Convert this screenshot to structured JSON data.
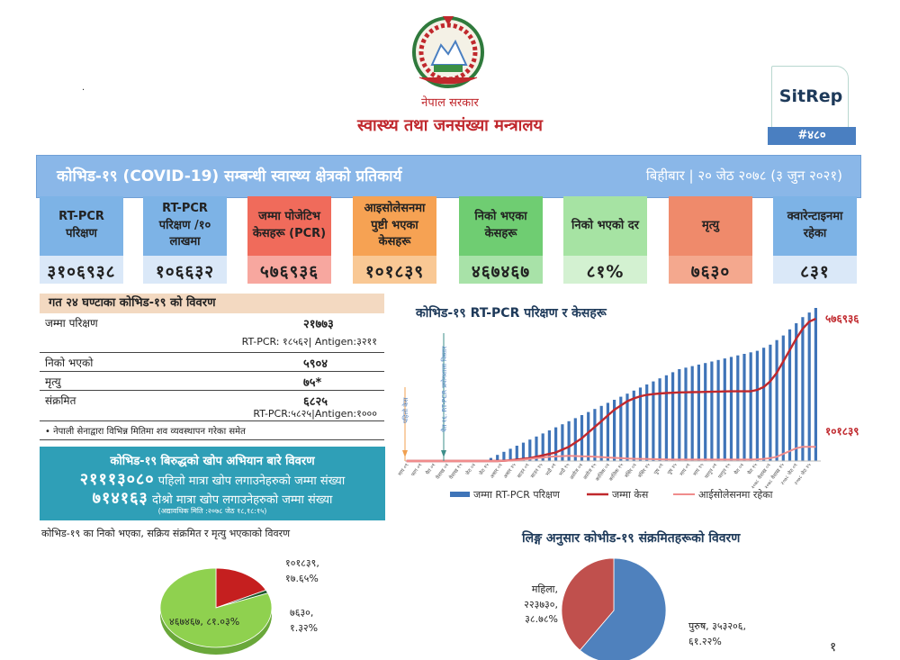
{
  "header": {
    "gov_name": "नेपाल सरकार",
    "ministry": "स्वास्थ्य तथा जनसंख्या मन्त्रालय",
    "dot": ".",
    "emblem_icon": "nepal-emblem"
  },
  "sitrep": {
    "label": "SitRep",
    "number": "#४८०"
  },
  "banner": {
    "title": "कोभिड-१९ (COVID-19) सम्बन्धी स्वास्थ्य क्षेत्रको प्रतिकार्य",
    "date": "बिहीबार | २० जेठ २०७८ (३ जुन २०२१)"
  },
  "cards": [
    {
      "label": "RT-PCR परिक्षण",
      "value": "३१०६९३८",
      "color_top": "#7db3e6",
      "color_bottom": "#dae8f8"
    },
    {
      "label": "RT-PCR परिक्षण /१० लाखमा",
      "value": "१०६६३२",
      "color_top": "#7db3e6",
      "color_bottom": "#dae8f8"
    },
    {
      "label": "जम्मा पोजेटिभ केसहरू (PCR)",
      "value": "५७६९३६",
      "color_top": "#f06b5b",
      "color_bottom": "#f7a79f"
    },
    {
      "label": "आइसोलेसनमा पुष्टी भएका केसहरू",
      "value": "१०१८३९",
      "color_top": "#f6a253",
      "color_bottom": "#f9c894"
    },
    {
      "label": "निको भएका केसहरू",
      "value": "४६७४६७",
      "color_top": "#6fcd72",
      "color_bottom": "#a8e2a8"
    },
    {
      "label": "निको भएको दर",
      "value": "८१%",
      "color_top": "#a6e3a3",
      "color_bottom": "#d3f1d1"
    },
    {
      "label": "मृत्यु",
      "value": "७६३०",
      "color_top": "#ef8a6b",
      "color_bottom": "#f4a88e"
    },
    {
      "label": "क्वारेन्टाइनमा रहेका",
      "value": "८३१",
      "color_top": "#7db3e6",
      "color_bottom": "#dae8f8"
    }
  ],
  "table24": {
    "title": "गत २४ घण्टाका कोभिड-१९ को विवरण",
    "rows": [
      {
        "label": "जम्मा परिक्षण",
        "value": "२१७७३",
        "sub": "RT-PCR: १८५६२| Antigen:३२११"
      },
      {
        "label": "निको भएको",
        "value": "५९०४",
        "sub": ""
      },
      {
        "label": "मृत्यु",
        "value": "७५*",
        "sub": ""
      },
      {
        "label": "संक्रमित",
        "value": "६८२५",
        "sub": "RT-PCR:५८२५|Antigen:१०००"
      }
    ],
    "note": "• नेपाली सेनाद्वारा विभिन्न मितिमा शव व्यवस्थापन गरेका समेत"
  },
  "vaccine": {
    "title": "कोभिड-१९ बिरुद्धको खोप अभियान बारे विवरण",
    "first_value": "२१११३०८०",
    "first_text": "पहिलो मात्रा खोप लगाउनेहरुको जम्मा संख्या",
    "second_value": "७१४१६३",
    "second_text": "दोश्रो मात्रा खोप लगाउनेहरुको जम्मा संख्या",
    "note": "(अद्यावधिक मिति :२०७८ जेठ १८,१८:१५)"
  },
  "left_pie": {
    "title": "कोभिड-१९ का निको भएका, सक्रिय संक्रमित र मृत्यु भएकाको विवरण",
    "labels": [
      {
        "line1": "१०१८३९,",
        "line2": "१७.६५%"
      },
      {
        "line1": "७६३०,",
        "line2": "१.३२%"
      },
      {
        "line1": "४६७४६७, ८१.०३%",
        "line2": ""
      }
    ]
  },
  "right_pie": {
    "title": "लिङ्ग अनुसार कोभीड-१९ संक्रमितहरूको विवरण",
    "female": {
      "line1": "महिला,",
      "line2": "२२३७३०,",
      "line3": "३८.७८%"
    },
    "male": {
      "line1": "पुरुष, ३५३२०६,",
      "line2": "६१.२२%"
    }
  },
  "page_number": "१",
  "main_chart": {
    "title_prefix": "कोभिड-१९",
    "title_rest": "RT-PCR परिक्षण र केसहरू",
    "end_label_cases": "५७६९३६",
    "end_label_isolation": "१०१८३९",
    "annotations": [
      "पहिलो केस",
      "चैत १६: RT-PCR प्रयोगशाला विस्तार"
    ],
    "x_tick_labels": [
      "माघ ०९",
      "फाग ०१",
      "चैत ०१",
      "वैशाख ०१",
      "वैशाख १५",
      "जेठ ०१",
      "जेठ १५",
      "असार ०१",
      "असार १५",
      "साउन ०१",
      "साउन १५",
      "भदौ ०१",
      "भदौ १५",
      "असोज ०१",
      "असोज १५",
      "कात्तिक ०१",
      "कात्तिक १५",
      "मंसिर ०१",
      "मंसिर १५",
      "पुष ०१",
      "पुष १५",
      "माघ ०१",
      "माघ १५",
      "फागुन ०१",
      "फागुन १५",
      "चैत ०१",
      "चैत १५",
      "२०७८ वैशाख ०१",
      "२०७८ वैशाख १५",
      "२०७८ जेठ ०१",
      "२०७८ जेठ १५"
    ],
    "legend": [
      "जम्मा RT-PCR परिक्षण",
      "जम्मा केस",
      "आईसोलेसनमा रहेका"
    ]
  },
  "chart_data": [
    {
      "type": "bar",
      "title": "कोभिड-१९ RT-PCR परिक्षण र केसहरू",
      "series": [
        {
          "name": "जम्मा RT-PCR परिक्षण",
          "type": "bar",
          "color": "#3f74b8",
          "values": [
            0,
            0,
            0,
            0,
            0,
            0,
            0,
            0,
            0,
            0,
            0,
            0,
            0,
            0.02,
            0.04,
            0.06,
            0.08,
            0.1,
            0.12,
            0.14,
            0.16,
            0.18,
            0.2,
            0.22,
            0.24,
            0.26,
            0.28,
            0.3,
            0.32,
            0.34,
            0.36,
            0.38,
            0.4,
            0.42,
            0.44,
            0.46,
            0.48,
            0.5,
            0.52,
            0.54,
            0.56,
            0.58,
            0.6,
            0.61,
            0.62,
            0.63,
            0.64,
            0.65,
            0.66,
            0.67,
            0.68,
            0.69,
            0.7,
            0.71,
            0.72,
            0.74,
            0.76,
            0.79,
            0.82,
            0.86,
            0.9,
            0.94,
            0.97,
            1.0
          ]
        },
        {
          "name": "जम्मा केस",
          "type": "line",
          "color": "#c0282d",
          "values": [
            0,
            0,
            0,
            0,
            0,
            0,
            0,
            0,
            0,
            0,
            0,
            0,
            0,
            0,
            0,
            0.002,
            0.005,
            0.01,
            0.015,
            0.02,
            0.03,
            0.04,
            0.05,
            0.06,
            0.08,
            0.1,
            0.13,
            0.16,
            0.2,
            0.24,
            0.28,
            0.32,
            0.36,
            0.39,
            0.42,
            0.44,
            0.455,
            0.465,
            0.47,
            0.475,
            0.478,
            0.48,
            0.482,
            0.483,
            0.484,
            0.485,
            0.486,
            0.487,
            0.488,
            0.489,
            0.49,
            0.49,
            0.49,
            0.49,
            0.5,
            0.52,
            0.56,
            0.62,
            0.7,
            0.78,
            0.86,
            0.93,
            0.98,
            1.0
          ]
        },
        {
          "name": "आईसोलेसनमा रहेका",
          "type": "line",
          "color": "#f08c8c",
          "values": [
            0,
            0,
            0,
            0,
            0,
            0,
            0,
            0,
            0,
            0,
            0,
            0,
            0,
            0,
            0,
            0.002,
            0.004,
            0.006,
            0.01,
            0.015,
            0.02,
            0.025,
            0.03,
            0.032,
            0.034,
            0.036,
            0.035,
            0.033,
            0.032,
            0.03,
            0.028,
            0.025,
            0.022,
            0.02,
            0.018,
            0.016,
            0.015,
            0.014,
            0.013,
            0.012,
            0.011,
            0.01,
            0.01,
            0.01,
            0.01,
            0.01,
            0.01,
            0.01,
            0.01,
            0.01,
            0.01,
            0.01,
            0.01,
            0.01,
            0.012,
            0.015,
            0.02,
            0.03,
            0.05,
            0.07,
            0.09,
            0.1,
            0.1,
            0.1
          ]
        }
      ]
    },
    {
      "type": "pie",
      "title": "कोभिड-१९ का निको भएका, सक्रिय संक्रमित र मृत्यु भएकाको विवरण",
      "categories": [
        "निको भएका",
        "सक्रिय संक्रमित",
        "मृत्यु"
      ],
      "values": [
        81.03,
        17.65,
        1.32
      ],
      "colors": [
        "#8fd14f",
        "#c51f1f",
        "#1f5a2e"
      ]
    },
    {
      "type": "pie",
      "title": "लिङ्ग अनुसार कोभीड-१९ संक्रमितहरूको विवरण",
      "categories": [
        "महिला",
        "पुरुष"
      ],
      "values": [
        38.78,
        61.22
      ],
      "colors": [
        "#c0504d",
        "#4f81bd"
      ]
    }
  ]
}
